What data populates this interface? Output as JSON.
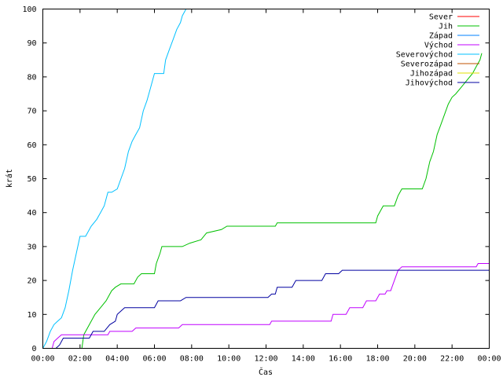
{
  "chart_data": {
    "type": "line",
    "xlabel": "Čas",
    "ylabel": "krát",
    "x_unit": "hours",
    "xlim": [
      0,
      24
    ],
    "ylim": [
      0,
      100
    ],
    "x_ticks": [
      {
        "value": 0,
        "label": "00:00"
      },
      {
        "value": 2,
        "label": "02:00"
      },
      {
        "value": 4,
        "label": "04:00"
      },
      {
        "value": 6,
        "label": "06:00"
      },
      {
        "value": 8,
        "label": "08:00"
      },
      {
        "value": 10,
        "label": "10:00"
      },
      {
        "value": 12,
        "label": "12:00"
      },
      {
        "value": 14,
        "label": "14:00"
      },
      {
        "value": 16,
        "label": "16:00"
      },
      {
        "value": 18,
        "label": "18:00"
      },
      {
        "value": 20,
        "label": "20:00"
      },
      {
        "value": 22,
        "label": "22:00"
      },
      {
        "value": 24,
        "label": "00:00"
      }
    ],
    "y_ticks": [
      0,
      10,
      20,
      30,
      40,
      50,
      60,
      70,
      80,
      90,
      100
    ],
    "grid": false,
    "legend_position": "top-right",
    "series": [
      {
        "name": "Sever",
        "color": "#ff0000",
        "points": []
      },
      {
        "name": "Jih",
        "color": "#00c000",
        "points": [
          [
            0,
            0
          ],
          [
            2.1,
            0
          ],
          [
            2.2,
            4
          ],
          [
            2.5,
            7
          ],
          [
            2.8,
            10
          ],
          [
            3.1,
            12
          ],
          [
            3.4,
            14
          ],
          [
            3.7,
            17
          ],
          [
            3.9,
            18
          ],
          [
            4.2,
            19
          ],
          [
            4.9,
            19
          ],
          [
            5.1,
            21
          ],
          [
            5.3,
            22
          ],
          [
            6.0,
            22
          ],
          [
            6.1,
            25
          ],
          [
            6.3,
            28
          ],
          [
            6.4,
            30
          ],
          [
            7.5,
            30
          ],
          [
            7.9,
            31
          ],
          [
            8.5,
            32
          ],
          [
            8.8,
            34
          ],
          [
            9.6,
            35
          ],
          [
            9.9,
            36
          ],
          [
            12.5,
            36
          ],
          [
            12.6,
            37
          ],
          [
            17.9,
            37
          ],
          [
            18.0,
            39
          ],
          [
            18.3,
            42
          ],
          [
            18.9,
            42
          ],
          [
            19.1,
            45
          ],
          [
            19.3,
            47
          ],
          [
            20.4,
            47
          ],
          [
            20.6,
            50
          ],
          [
            20.8,
            55
          ],
          [
            21.0,
            58
          ],
          [
            21.2,
            63
          ],
          [
            21.4,
            66
          ],
          [
            21.6,
            69
          ],
          [
            21.8,
            72
          ],
          [
            22.0,
            74
          ],
          [
            22.2,
            75
          ],
          [
            22.5,
            77
          ],
          [
            22.8,
            79
          ],
          [
            23.1,
            81
          ],
          [
            23.3,
            83
          ],
          [
            23.5,
            85
          ],
          [
            23.6,
            87
          ]
        ]
      },
      {
        "name": "Západ",
        "color": "#0080ff",
        "points": []
      },
      {
        "name": "Východ",
        "color": "#c000ff",
        "points": [
          [
            0,
            0
          ],
          [
            0.5,
            0
          ],
          [
            0.6,
            2
          ],
          [
            0.8,
            3
          ],
          [
            1.0,
            4
          ],
          [
            3.5,
            4
          ],
          [
            3.6,
            5
          ],
          [
            4.8,
            5
          ],
          [
            5.0,
            6
          ],
          [
            7.3,
            6
          ],
          [
            7.5,
            7
          ],
          [
            12.2,
            7
          ],
          [
            12.3,
            8
          ],
          [
            15.5,
            8
          ],
          [
            15.6,
            10
          ],
          [
            16.3,
            10
          ],
          [
            16.5,
            12
          ],
          [
            17.2,
            12
          ],
          [
            17.4,
            14
          ],
          [
            17.9,
            14
          ],
          [
            18.1,
            16
          ],
          [
            18.4,
            16
          ],
          [
            18.5,
            17
          ],
          [
            18.7,
            17
          ],
          [
            18.9,
            20
          ],
          [
            19.1,
            23
          ],
          [
            19.3,
            24
          ],
          [
            23.3,
            24
          ],
          [
            23.4,
            25
          ],
          [
            24,
            25
          ]
        ]
      },
      {
        "name": "Severovýchod",
        "color": "#00c0ff",
        "points": [
          [
            0,
            0
          ],
          [
            0.2,
            2
          ],
          [
            0.4,
            5
          ],
          [
            0.6,
            7
          ],
          [
            0.8,
            8
          ],
          [
            1.0,
            9
          ],
          [
            1.2,
            12
          ],
          [
            1.4,
            17
          ],
          [
            1.6,
            23
          ],
          [
            1.8,
            28
          ],
          [
            2.0,
            33
          ],
          [
            2.3,
            33
          ],
          [
            2.6,
            36
          ],
          [
            2.9,
            38
          ],
          [
            3.1,
            40
          ],
          [
            3.3,
            42
          ],
          [
            3.5,
            46
          ],
          [
            3.7,
            46
          ],
          [
            4.0,
            47
          ],
          [
            4.2,
            50
          ],
          [
            4.4,
            53
          ],
          [
            4.6,
            58
          ],
          [
            4.8,
            61
          ],
          [
            5.0,
            63
          ],
          [
            5.2,
            65
          ],
          [
            5.4,
            70
          ],
          [
            5.6,
            73
          ],
          [
            5.8,
            77
          ],
          [
            6.0,
            81
          ],
          [
            6.5,
            81
          ],
          [
            6.6,
            85
          ],
          [
            6.8,
            88
          ],
          [
            7.0,
            91
          ],
          [
            7.2,
            94
          ],
          [
            7.4,
            96
          ],
          [
            7.5,
            98
          ],
          [
            7.7,
            100
          ]
        ]
      },
      {
        "name": "Severozápad",
        "color": "#c05000",
        "points": []
      },
      {
        "name": "Jihozápad",
        "color": "#e0e000",
        "points": []
      },
      {
        "name": "Jihovýchod",
        "color": "#0000a0",
        "points": [
          [
            0,
            0
          ],
          [
            0.7,
            0
          ],
          [
            0.9,
            1
          ],
          [
            1.1,
            3
          ],
          [
            2.5,
            3
          ],
          [
            2.7,
            5
          ],
          [
            3.3,
            5
          ],
          [
            3.6,
            7
          ],
          [
            3.9,
            8
          ],
          [
            4.0,
            10
          ],
          [
            4.2,
            11
          ],
          [
            4.4,
            12
          ],
          [
            6.0,
            12
          ],
          [
            6.2,
            14
          ],
          [
            7.4,
            14
          ],
          [
            7.7,
            15
          ],
          [
            12.1,
            15
          ],
          [
            12.3,
            16
          ],
          [
            12.5,
            16
          ],
          [
            12.6,
            18
          ],
          [
            13.4,
            18
          ],
          [
            13.6,
            20
          ],
          [
            15.0,
            20
          ],
          [
            15.2,
            22
          ],
          [
            15.9,
            22
          ],
          [
            16.1,
            23
          ],
          [
            24,
            23
          ]
        ]
      }
    ]
  }
}
